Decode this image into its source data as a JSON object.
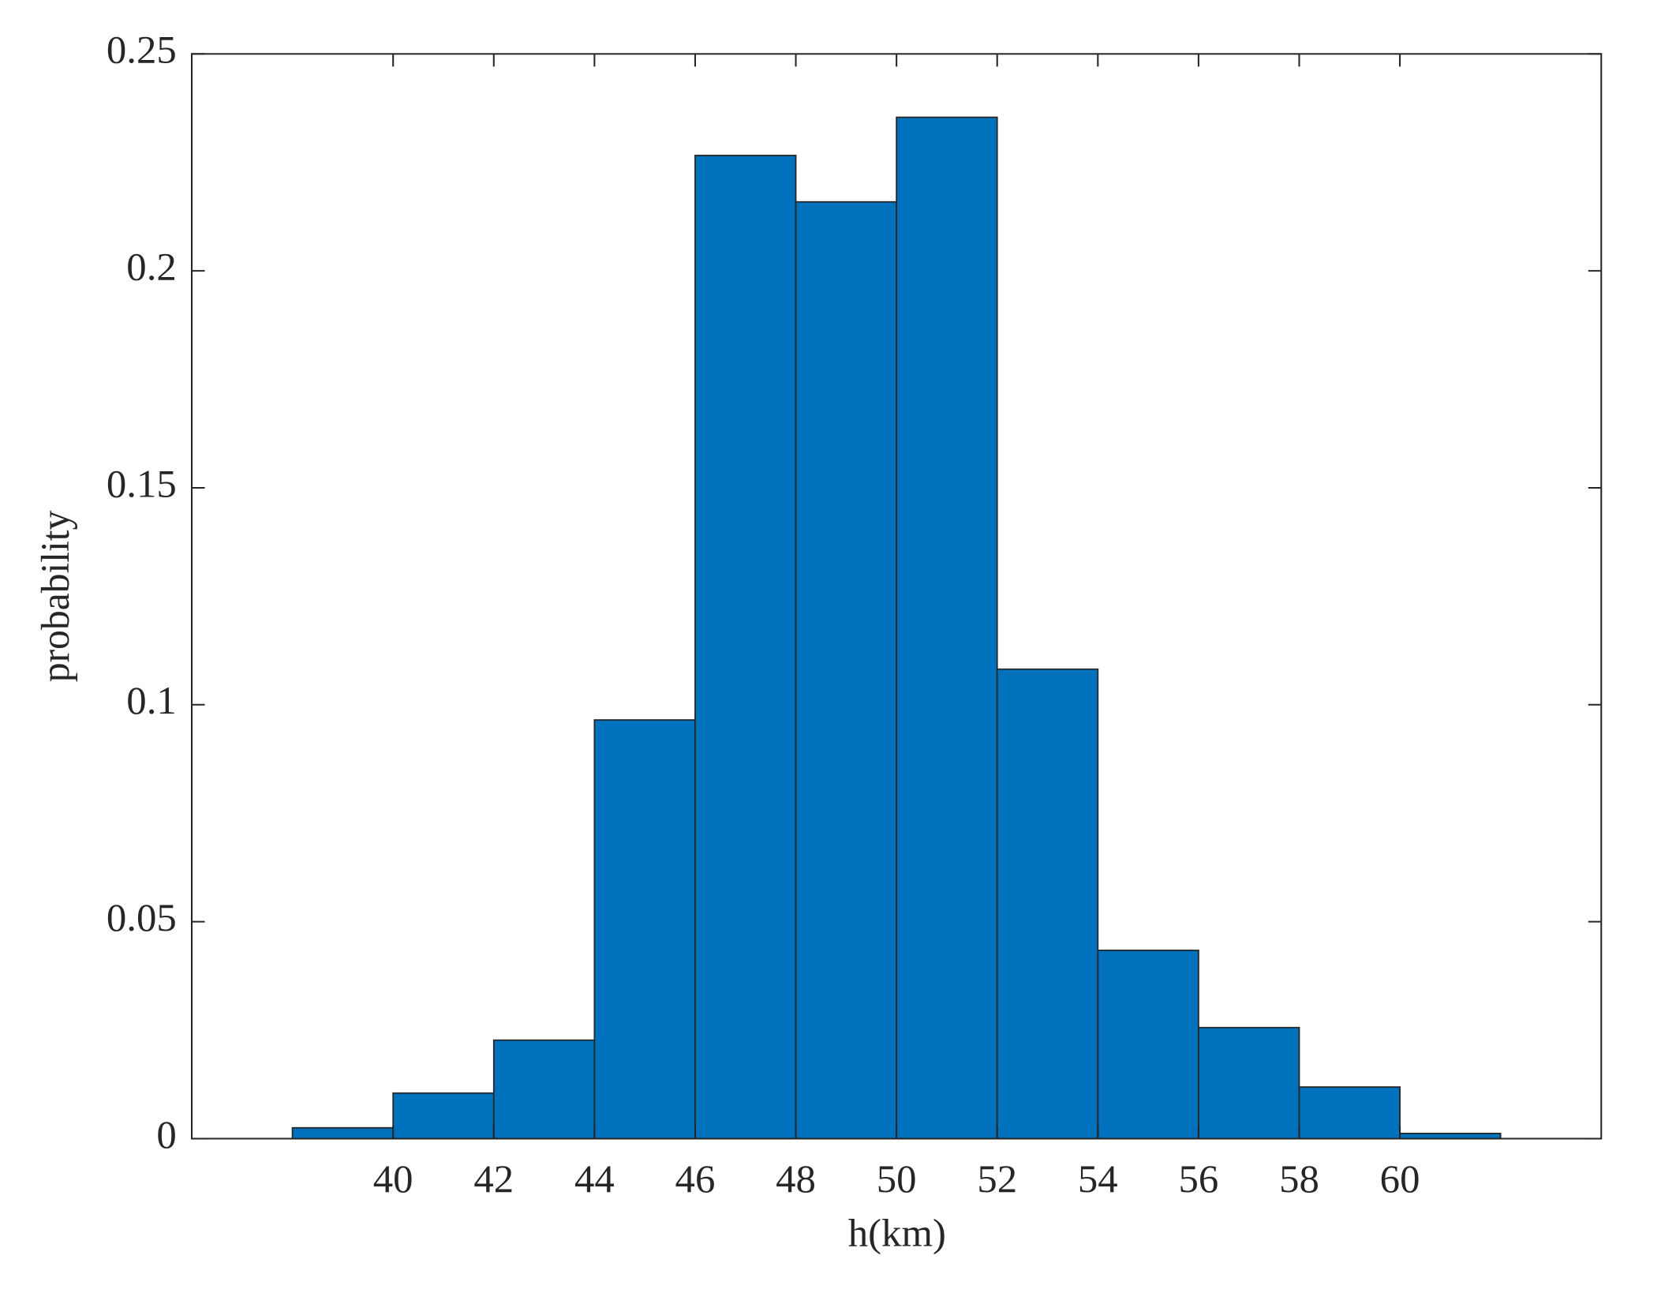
{
  "chart_data": {
    "type": "histogram",
    "xlabel": "h(km)",
    "ylabel": "probability",
    "bins": [
      38,
      40,
      42,
      44,
      46,
      48,
      50,
      52,
      54,
      56,
      58,
      60,
      62
    ],
    "values": [
      0.0025,
      0.0105,
      0.0227,
      0.0965,
      0.2266,
      0.2159,
      0.2354,
      0.1082,
      0.0434,
      0.0256,
      0.0119,
      0.0012
    ],
    "color": "#0072bd",
    "xlim": [
      36,
      64
    ],
    "xticks": [
      40,
      42,
      44,
      46,
      48,
      50,
      52,
      54,
      56,
      58,
      60
    ],
    "ylim": [
      0,
      0.25
    ],
    "yticks": [
      0,
      0.05,
      0.1,
      0.15,
      0.2,
      0.25
    ],
    "box": true
  }
}
